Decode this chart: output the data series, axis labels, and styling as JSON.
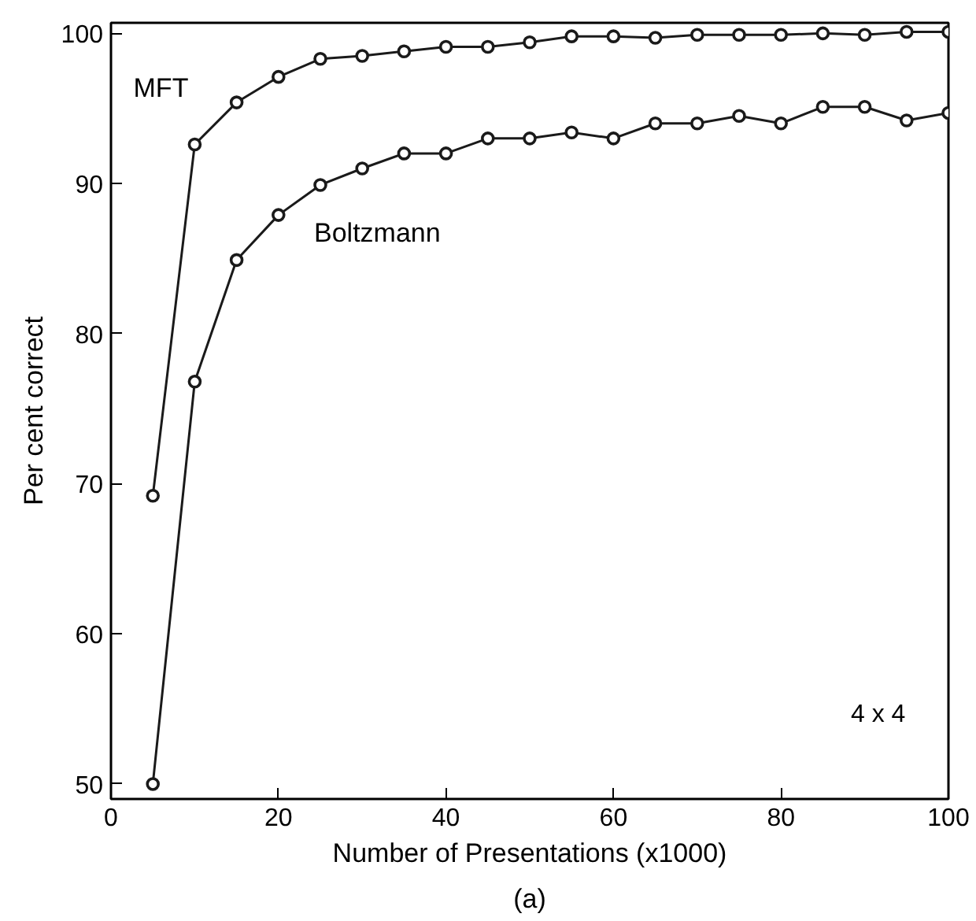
{
  "chart_data": {
    "type": "line",
    "xlabel": "Number of Presentations (x1000)",
    "ylabel": "Per cent correct",
    "x": [
      5,
      10,
      15,
      20,
      25,
      30,
      35,
      40,
      45,
      50,
      55,
      60,
      65,
      70,
      75,
      80,
      85,
      90,
      95,
      100
    ],
    "series": [
      {
        "name": "MFT",
        "color": "#1a1a1a",
        "values": [
          69.2,
          92.6,
          95.4,
          97.1,
          98.3,
          98.5,
          98.8,
          99.1,
          99.1,
          99.4,
          99.8,
          99.8,
          99.7,
          99.9,
          99.9,
          99.9,
          100.0,
          99.9,
          100.1,
          100.1
        ]
      },
      {
        "name": "Boltzmann",
        "color": "#1a1a1a",
        "values": [
          50.0,
          76.8,
          84.9,
          87.9,
          89.9,
          91.0,
          92.0,
          92.0,
          93.0,
          93.0,
          93.4,
          93.0,
          94.0,
          94.0,
          94.5,
          94.0,
          95.1,
          95.1,
          94.2,
          94.7
        ]
      }
    ],
    "xlim": [
      0,
      100
    ],
    "ylim": [
      49,
      100.7
    ],
    "xticks": [
      0,
      20,
      40,
      60,
      80,
      100
    ],
    "yticks": [
      50,
      60,
      70,
      80,
      90,
      100
    ],
    "marker": "circle",
    "line_style": "solid",
    "grid": false,
    "legend": false,
    "annotations": [
      "4 x 4",
      "(a)"
    ]
  }
}
